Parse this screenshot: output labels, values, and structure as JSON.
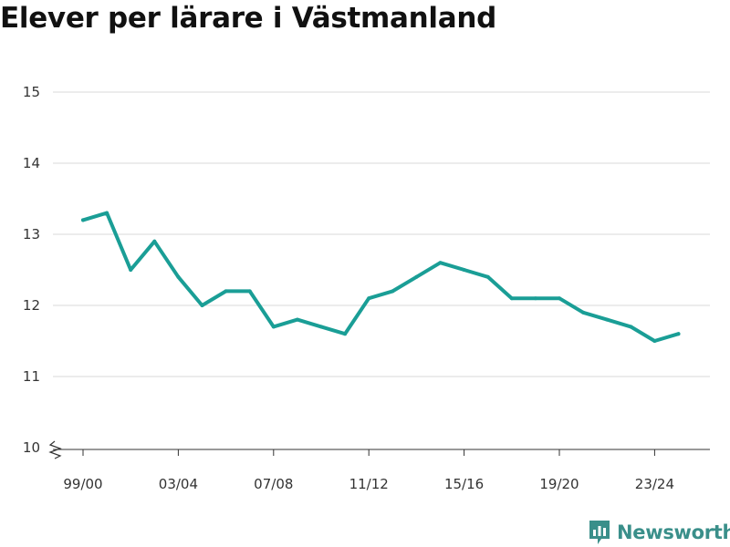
{
  "chart_data": {
    "type": "line",
    "title": "Elever per lärare i Västmanland",
    "xlabel": "",
    "ylabel": "",
    "x": [
      "99/00",
      "00/01",
      "01/02",
      "02/03",
      "03/04",
      "04/05",
      "05/06",
      "06/07",
      "07/08",
      "08/09",
      "09/10",
      "10/11",
      "11/12",
      "12/13",
      "13/14",
      "14/15",
      "15/16",
      "16/17",
      "17/18",
      "18/19",
      "19/20",
      "20/21",
      "21/22",
      "22/23",
      "23/24",
      "24/25"
    ],
    "x_tick_labels": [
      "99/00",
      "03/04",
      "07/08",
      "11/12",
      "15/16",
      "19/20",
      "23/24"
    ],
    "series": [
      {
        "name": "",
        "color": "#1a9e96",
        "values": [
          13.2,
          13.3,
          12.5,
          12.9,
          12.4,
          12.0,
          12.2,
          12.2,
          11.7,
          11.8,
          11.7,
          11.6,
          12.1,
          12.2,
          12.4,
          12.6,
          12.5,
          12.4,
          12.1,
          12.1,
          12.1,
          11.9,
          11.8,
          11.7,
          11.5,
          11.6
        ]
      }
    ],
    "y_ticks": [
      10,
      11,
      12,
      13,
      14,
      15
    ],
    "ylim": [
      10,
      15
    ],
    "y_axis_break": true,
    "grid": true,
    "legend": "none"
  },
  "branding": {
    "name": "Newsworthy",
    "icon": "newsworthy-logo-icon",
    "color": "#3a8f8a"
  }
}
